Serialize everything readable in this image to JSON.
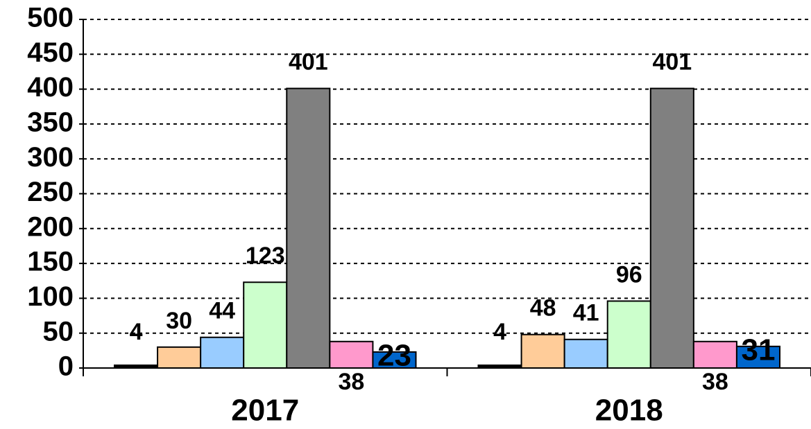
{
  "chart_data": {
    "type": "bar",
    "categories": [
      "2017",
      "2018"
    ],
    "series": [
      {
        "color": "#000000",
        "values": [
          4,
          4
        ]
      },
      {
        "color": "#ffcc99",
        "values": [
          30,
          48
        ]
      },
      {
        "color": "#99ccff",
        "values": [
          44,
          41
        ]
      },
      {
        "color": "#ccffcc",
        "values": [
          123,
          96
        ]
      },
      {
        "color": "#808080",
        "values": [
          401,
          401
        ]
      },
      {
        "color": "#ff99cc",
        "values": [
          38,
          38
        ]
      },
      {
        "color": "#0066cc",
        "values": [
          23,
          31
        ]
      }
    ],
    "ylim": [
      0,
      500
    ],
    "yticks": [
      0,
      50,
      100,
      150,
      200,
      250,
      300,
      350,
      400,
      450,
      500
    ],
    "grid": true
  }
}
